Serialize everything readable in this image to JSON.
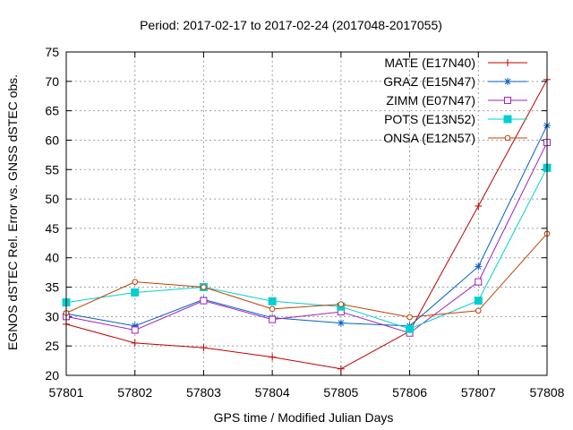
{
  "chart_data": {
    "type": "line",
    "title": "Period: 2017-02-17 to 2017-02-24 (2017048-2017055)",
    "xlabel": "GPS time / Modified Julian Days",
    "ylabel": "EGNOS dSTEC Rel. Error vs. GNSS dSTEC obs.",
    "x": [
      57801,
      57802,
      57803,
      57804,
      57805,
      57806,
      57807,
      57808
    ],
    "xticks": [
      "57801",
      "57802",
      "57803",
      "57804",
      "57805",
      "57806",
      "57807",
      "57808"
    ],
    "yticks": [
      "20",
      "25",
      "30",
      "35",
      "40",
      "45",
      "50",
      "55",
      "60",
      "65",
      "70",
      "75"
    ],
    "xlim": [
      57801,
      57808
    ],
    "ylim": [
      20,
      75
    ],
    "grid": true,
    "legend_position": "top-right",
    "series": [
      {
        "name": "MATE (E17N40)",
        "color": "#c00000",
        "marker": "plus",
        "values": [
          28.7,
          25.5,
          24.7,
          23.1,
          21.1,
          27.5,
          48.8,
          70.3
        ]
      },
      {
        "name": "GRAZ (E15N47)",
        "color": "#0060c0",
        "marker": "star",
        "values": [
          30.5,
          28.4,
          32.9,
          29.8,
          28.9,
          28.4,
          38.5,
          62.5
        ]
      },
      {
        "name": "ZIMM (E07N47)",
        "color": "#a020c0",
        "marker": "square-open",
        "values": [
          30.0,
          27.7,
          32.7,
          29.5,
          30.8,
          27.2,
          35.9,
          59.6
        ]
      },
      {
        "name": "POTS (E13N52)",
        "color": "#00d0d0",
        "marker": "square-filled",
        "values": [
          32.4,
          34.1,
          35.0,
          32.6,
          31.7,
          27.9,
          32.7,
          55.3
        ]
      },
      {
        "name": "ONSA (E12N57)",
        "color": "#c04000",
        "marker": "circle-open",
        "values": [
          30.6,
          35.9,
          35.0,
          31.3,
          32.1,
          29.9,
          31.0,
          44.1
        ]
      }
    ]
  }
}
